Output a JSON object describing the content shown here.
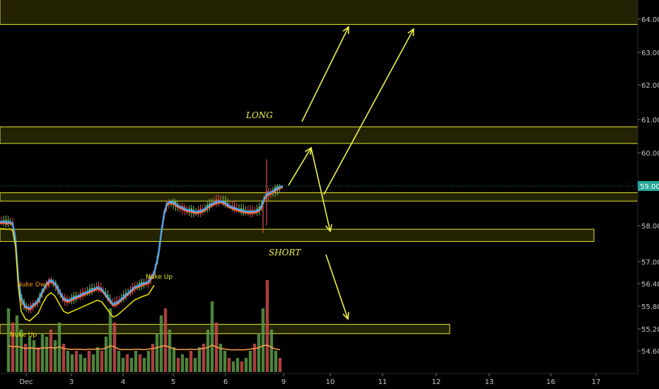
{
  "chart_data": {
    "type": "candlestick",
    "title": "",
    "y_axis": {
      "position": "right",
      "ticks": [
        "64.00",
        "63.00",
        "62.00",
        "61.00",
        "60.00",
        "59.00",
        "58.00",
        "57.00",
        "56.40",
        "55.80",
        "55.20",
        "54.60"
      ],
      "tick_values": [
        64.0,
        63.0,
        62.0,
        61.0,
        60.0,
        59.0,
        58.0,
        57.0,
        56.4,
        55.8,
        55.2,
        54.6
      ],
      "scale": "piecewise-price"
    },
    "x_axis": {
      "ticks": [
        "Dec",
        "3",
        "4",
        "5",
        "6",
        "9",
        "10",
        "11",
        "12",
        "13",
        "16",
        "17"
      ]
    },
    "last_price": {
      "label": "59.00",
      "value": 59.0,
      "color": "#26a69a"
    },
    "zones": [
      {
        "name": "top-zone",
        "from": 63.84,
        "to": 64.6
      },
      {
        "name": "long-zone",
        "from": 60.28,
        "to": 60.78
      },
      {
        "name": "mid-zone",
        "from": 58.62,
        "to": 58.83
      },
      {
        "name": "short-zone",
        "from": 57.56,
        "to": 57.9
      },
      {
        "name": "low-zone",
        "from": 55.07,
        "to": 55.32
      }
    ],
    "annotations": [
      {
        "text": "LONG",
        "color": "#f2f24a"
      },
      {
        "text": "SHORT",
        "color": "#f2f24a"
      }
    ],
    "signals": [
      {
        "text": "Nuke Dwn",
        "color": "#ff9800"
      },
      {
        "text": "Nuke Up",
        "color": "#f2e600"
      },
      {
        "text": "Nuke Up",
        "color": "#f2e600"
      }
    ],
    "price_path": [
      [
        0,
        58.1
      ],
      [
        6,
        58.1
      ],
      [
        10,
        58.08
      ],
      [
        14,
        58.1
      ],
      [
        18,
        58.05
      ],
      [
        22,
        57.6
      ],
      [
        26,
        56.5
      ],
      [
        30,
        56.0
      ],
      [
        36,
        55.8
      ],
      [
        42,
        55.75
      ],
      [
        48,
        55.85
      ],
      [
        54,
        55.95
      ],
      [
        60,
        56.2
      ],
      [
        66,
        56.4
      ],
      [
        72,
        56.5
      ],
      [
        78,
        56.4
      ],
      [
        84,
        56.2
      ],
      [
        90,
        56.0
      ],
      [
        96,
        55.95
      ],
      [
        102,
        56.0
      ],
      [
        108,
        56.05
      ],
      [
        114,
        56.1
      ],
      [
        120,
        56.15
      ],
      [
        126,
        56.2
      ],
      [
        132,
        56.25
      ],
      [
        138,
        56.3
      ],
      [
        144,
        56.25
      ],
      [
        150,
        56.1
      ],
      [
        156,
        55.95
      ],
      [
        160,
        55.85
      ],
      [
        166,
        55.9
      ],
      [
        172,
        56.0
      ],
      [
        178,
        56.1
      ],
      [
        184,
        56.2
      ],
      [
        190,
        56.3
      ],
      [
        196,
        56.35
      ],
      [
        202,
        56.4
      ],
      [
        210,
        56.45
      ],
      [
        218,
        56.7
      ],
      [
        224,
        57.2
      ],
      [
        228,
        57.8
      ],
      [
        232,
        58.3
      ],
      [
        236,
        58.55
      ],
      [
        240,
        58.6
      ],
      [
        246,
        58.58
      ],
      [
        252,
        58.5
      ],
      [
        258,
        58.45
      ],
      [
        264,
        58.4
      ],
      [
        270,
        58.38
      ],
      [
        276,
        58.35
      ],
      [
        282,
        58.36
      ],
      [
        288,
        58.4
      ],
      [
        294,
        58.48
      ],
      [
        300,
        58.55
      ],
      [
        306,
        58.6
      ],
      [
        312,
        58.62
      ],
      [
        318,
        58.58
      ],
      [
        324,
        58.5
      ],
      [
        330,
        58.45
      ],
      [
        336,
        58.42
      ],
      [
        342,
        58.38
      ],
      [
        348,
        58.36
      ],
      [
        354,
        58.35
      ],
      [
        360,
        58.36
      ],
      [
        366,
        58.4
      ],
      [
        370,
        58.5
      ],
      [
        374,
        58.7
      ],
      [
        378,
        58.8
      ],
      [
        384,
        58.85
      ],
      [
        390,
        58.92
      ],
      [
        396,
        58.98
      ],
      [
        400,
        59.0
      ]
    ],
    "volume_bars": [
      [
        12,
        0.9
      ],
      [
        18,
        0.7
      ],
      [
        24,
        0.8
      ],
      [
        30,
        0.6
      ],
      [
        36,
        0.4
      ],
      [
        42,
        0.5
      ],
      [
        48,
        0.45
      ],
      [
        54,
        0.35
      ],
      [
        60,
        0.55
      ],
      [
        66,
        0.5
      ],
      [
        72,
        0.6
      ],
      [
        78,
        0.45
      ],
      [
        84,
        0.7
      ],
      [
        90,
        0.4
      ],
      [
        96,
        0.3
      ],
      [
        102,
        0.25
      ],
      [
        108,
        0.3
      ],
      [
        114,
        0.25
      ],
      [
        120,
        0.2
      ],
      [
        126,
        0.3
      ],
      [
        132,
        0.25
      ],
      [
        138,
        0.35
      ],
      [
        144,
        0.3
      ],
      [
        150,
        0.5
      ],
      [
        156,
        0.9
      ],
      [
        162,
        0.7
      ],
      [
        168,
        0.3
      ],
      [
        174,
        0.2
      ],
      [
        180,
        0.25
      ],
      [
        186,
        0.2
      ],
      [
        192,
        0.3
      ],
      [
        198,
        0.25
      ],
      [
        204,
        0.2
      ],
      [
        210,
        0.3
      ],
      [
        216,
        0.4
      ],
      [
        222,
        0.55
      ],
      [
        228,
        0.8
      ],
      [
        234,
        0.9
      ],
      [
        240,
        0.6
      ],
      [
        246,
        0.35
      ],
      [
        252,
        0.2
      ],
      [
        258,
        0.25
      ],
      [
        264,
        0.2
      ],
      [
        270,
        0.3
      ],
      [
        276,
        0.2
      ],
      [
        282,
        0.35
      ],
      [
        288,
        0.4
      ],
      [
        294,
        0.6
      ],
      [
        300,
        1.0
      ],
      [
        306,
        0.7
      ],
      [
        312,
        0.4
      ],
      [
        318,
        0.3
      ],
      [
        324,
        0.2
      ],
      [
        330,
        0.15
      ],
      [
        336,
        0.2
      ],
      [
        342,
        0.15
      ],
      [
        348,
        0.2
      ],
      [
        354,
        0.3
      ],
      [
        360,
        0.4
      ],
      [
        366,
        0.55
      ],
      [
        372,
        0.9
      ],
      [
        378,
        1.3
      ],
      [
        384,
        0.6
      ],
      [
        390,
        0.3
      ],
      [
        396,
        0.2
      ]
    ]
  }
}
